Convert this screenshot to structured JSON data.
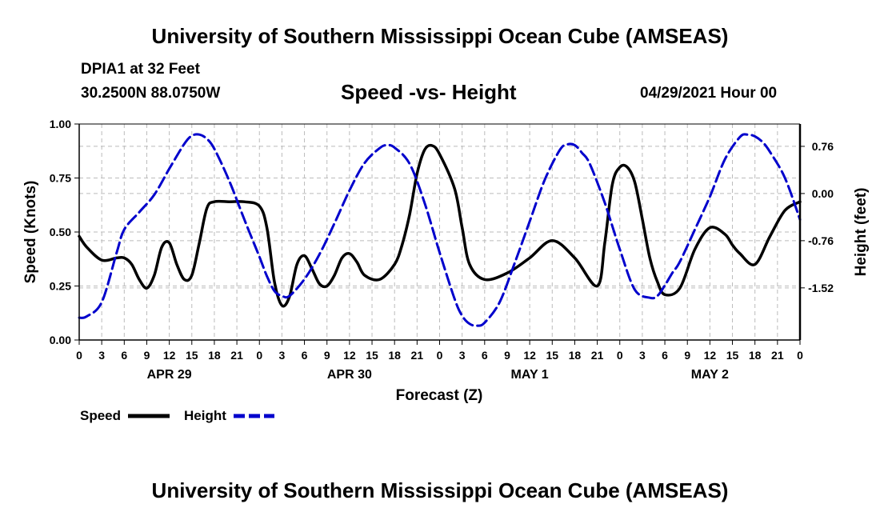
{
  "header": {
    "title": "University of Southern Mississippi Ocean Cube (AMSEAS)",
    "station": "DPIA1 at 32 Feet",
    "coords": "30.2500N  88.0750W",
    "subtitle": "Speed -vs- Height",
    "datetime": "04/29/2021 Hour 00"
  },
  "footer": {
    "title": "University of Southern Mississippi Ocean Cube (AMSEAS)"
  },
  "colors": {
    "speed": "#000000",
    "height": "#0000cc",
    "grid": "#bbbbbb"
  },
  "chart_data": {
    "type": "line",
    "title": "Speed -vs- Height",
    "xlabel": "Forecast (Z)",
    "ylabel": "Speed (Knots)",
    "y2label": "Height (feet)",
    "xlim": [
      0,
      96
    ],
    "ylim": [
      0,
      1
    ],
    "y2lim": [
      -2.36,
      1.12
    ],
    "grid": true,
    "x_ticks": [
      0,
      3,
      6,
      9,
      12,
      15,
      18,
      21,
      24,
      27,
      30,
      33,
      36,
      39,
      42,
      45,
      48,
      51,
      54,
      57,
      60,
      63,
      66,
      69,
      72,
      75,
      78,
      81,
      84,
      87,
      90,
      93,
      96
    ],
    "x_tick_labels": [
      "0",
      "3",
      "6",
      "9",
      "12",
      "15",
      "18",
      "21",
      "0",
      "3",
      "6",
      "9",
      "12",
      "15",
      "18",
      "21",
      "0",
      "3",
      "6",
      "9",
      "12",
      "15",
      "18",
      "21",
      "0",
      "3",
      "6",
      "9",
      "12",
      "15",
      "18",
      "21",
      "0"
    ],
    "day_labels": [
      {
        "x": 12,
        "label": "APR 29"
      },
      {
        "x": 36,
        "label": "APR 30"
      },
      {
        "x": 60,
        "label": "MAY 1"
      },
      {
        "x": 84,
        "label": "MAY 2"
      }
    ],
    "y_ticks": [
      0,
      0.25,
      0.5,
      0.75,
      1.0
    ],
    "y_tick_labels": [
      "0.00",
      "0.25",
      "0.50",
      "0.75",
      "1.00"
    ],
    "y2_ticks": [
      0.76,
      0,
      -0.76,
      -1.52
    ],
    "y2_tick_labels": [
      "0.76",
      "0.00",
      "-0.76",
      "-1.52"
    ],
    "legend": [
      "Speed",
      "Height"
    ],
    "series": [
      {
        "name": "Speed",
        "axis": "left",
        "x": [
          0,
          1,
          3,
          5,
          6,
          7,
          8,
          9,
          10,
          11,
          12,
          13,
          14,
          15,
          16,
          17,
          18,
          20,
          22,
          24,
          25,
          26,
          27,
          28,
          29,
          30,
          31,
          32,
          33,
          34,
          35,
          36,
          37,
          38,
          40,
          42,
          43,
          44,
          45,
          46,
          47,
          48,
          50,
          51,
          52,
          54,
          57,
          60,
          63,
          66,
          69,
          70,
          71,
          72,
          73,
          74,
          75,
          76,
          77,
          78,
          80,
          82,
          84,
          86,
          87,
          88,
          90,
          92,
          94,
          96
        ],
        "values": [
          0.48,
          0.43,
          0.37,
          0.38,
          0.38,
          0.35,
          0.28,
          0.24,
          0.3,
          0.43,
          0.45,
          0.35,
          0.28,
          0.3,
          0.45,
          0.61,
          0.64,
          0.64,
          0.64,
          0.62,
          0.52,
          0.27,
          0.16,
          0.2,
          0.35,
          0.39,
          0.33,
          0.26,
          0.25,
          0.3,
          0.38,
          0.4,
          0.36,
          0.3,
          0.28,
          0.35,
          0.44,
          0.58,
          0.77,
          0.88,
          0.9,
          0.86,
          0.7,
          0.52,
          0.35,
          0.28,
          0.31,
          0.38,
          0.46,
          0.38,
          0.25,
          0.45,
          0.72,
          0.8,
          0.8,
          0.73,
          0.56,
          0.38,
          0.27,
          0.21,
          0.24,
          0.42,
          0.52,
          0.49,
          0.44,
          0.4,
          0.35,
          0.48,
          0.6,
          0.64
        ]
      },
      {
        "name": "Height",
        "axis": "right",
        "x": [
          0,
          1,
          3,
          5,
          6,
          8,
          10,
          12,
          14,
          15,
          16,
          17,
          18,
          20,
          22,
          24,
          25,
          26,
          27,
          28,
          30,
          32,
          34,
          36,
          38,
          40,
          41,
          42,
          44,
          46,
          48,
          50,
          51,
          52,
          53,
          54,
          56,
          58,
          60,
          62,
          64,
          65,
          66,
          67,
          68,
          70,
          72,
          74,
          76,
          77,
          78,
          79,
          80,
          82,
          84,
          86,
          88,
          89,
          90,
          91,
          92,
          94,
          96
        ],
        "values": [
          -2.0,
          -1.98,
          -1.75,
          -0.95,
          -0.58,
          -0.3,
          -0.02,
          0.4,
          0.8,
          0.93,
          0.95,
          0.88,
          0.72,
          0.2,
          -0.42,
          -1.02,
          -1.33,
          -1.57,
          -1.65,
          -1.65,
          -1.38,
          -0.98,
          -0.48,
          0.05,
          0.49,
          0.73,
          0.78,
          0.74,
          0.48,
          -0.15,
          -0.95,
          -1.7,
          -1.97,
          -2.1,
          -2.13,
          -2.08,
          -1.75,
          -1.12,
          -0.45,
          0.22,
          0.7,
          0.79,
          0.78,
          0.65,
          0.48,
          -0.15,
          -0.9,
          -1.55,
          -1.68,
          -1.65,
          -1.48,
          -1.28,
          -1.1,
          -0.58,
          -0.05,
          0.55,
          0.91,
          0.95,
          0.92,
          0.83,
          0.67,
          0.25,
          -0.42
        ]
      }
    ]
  }
}
